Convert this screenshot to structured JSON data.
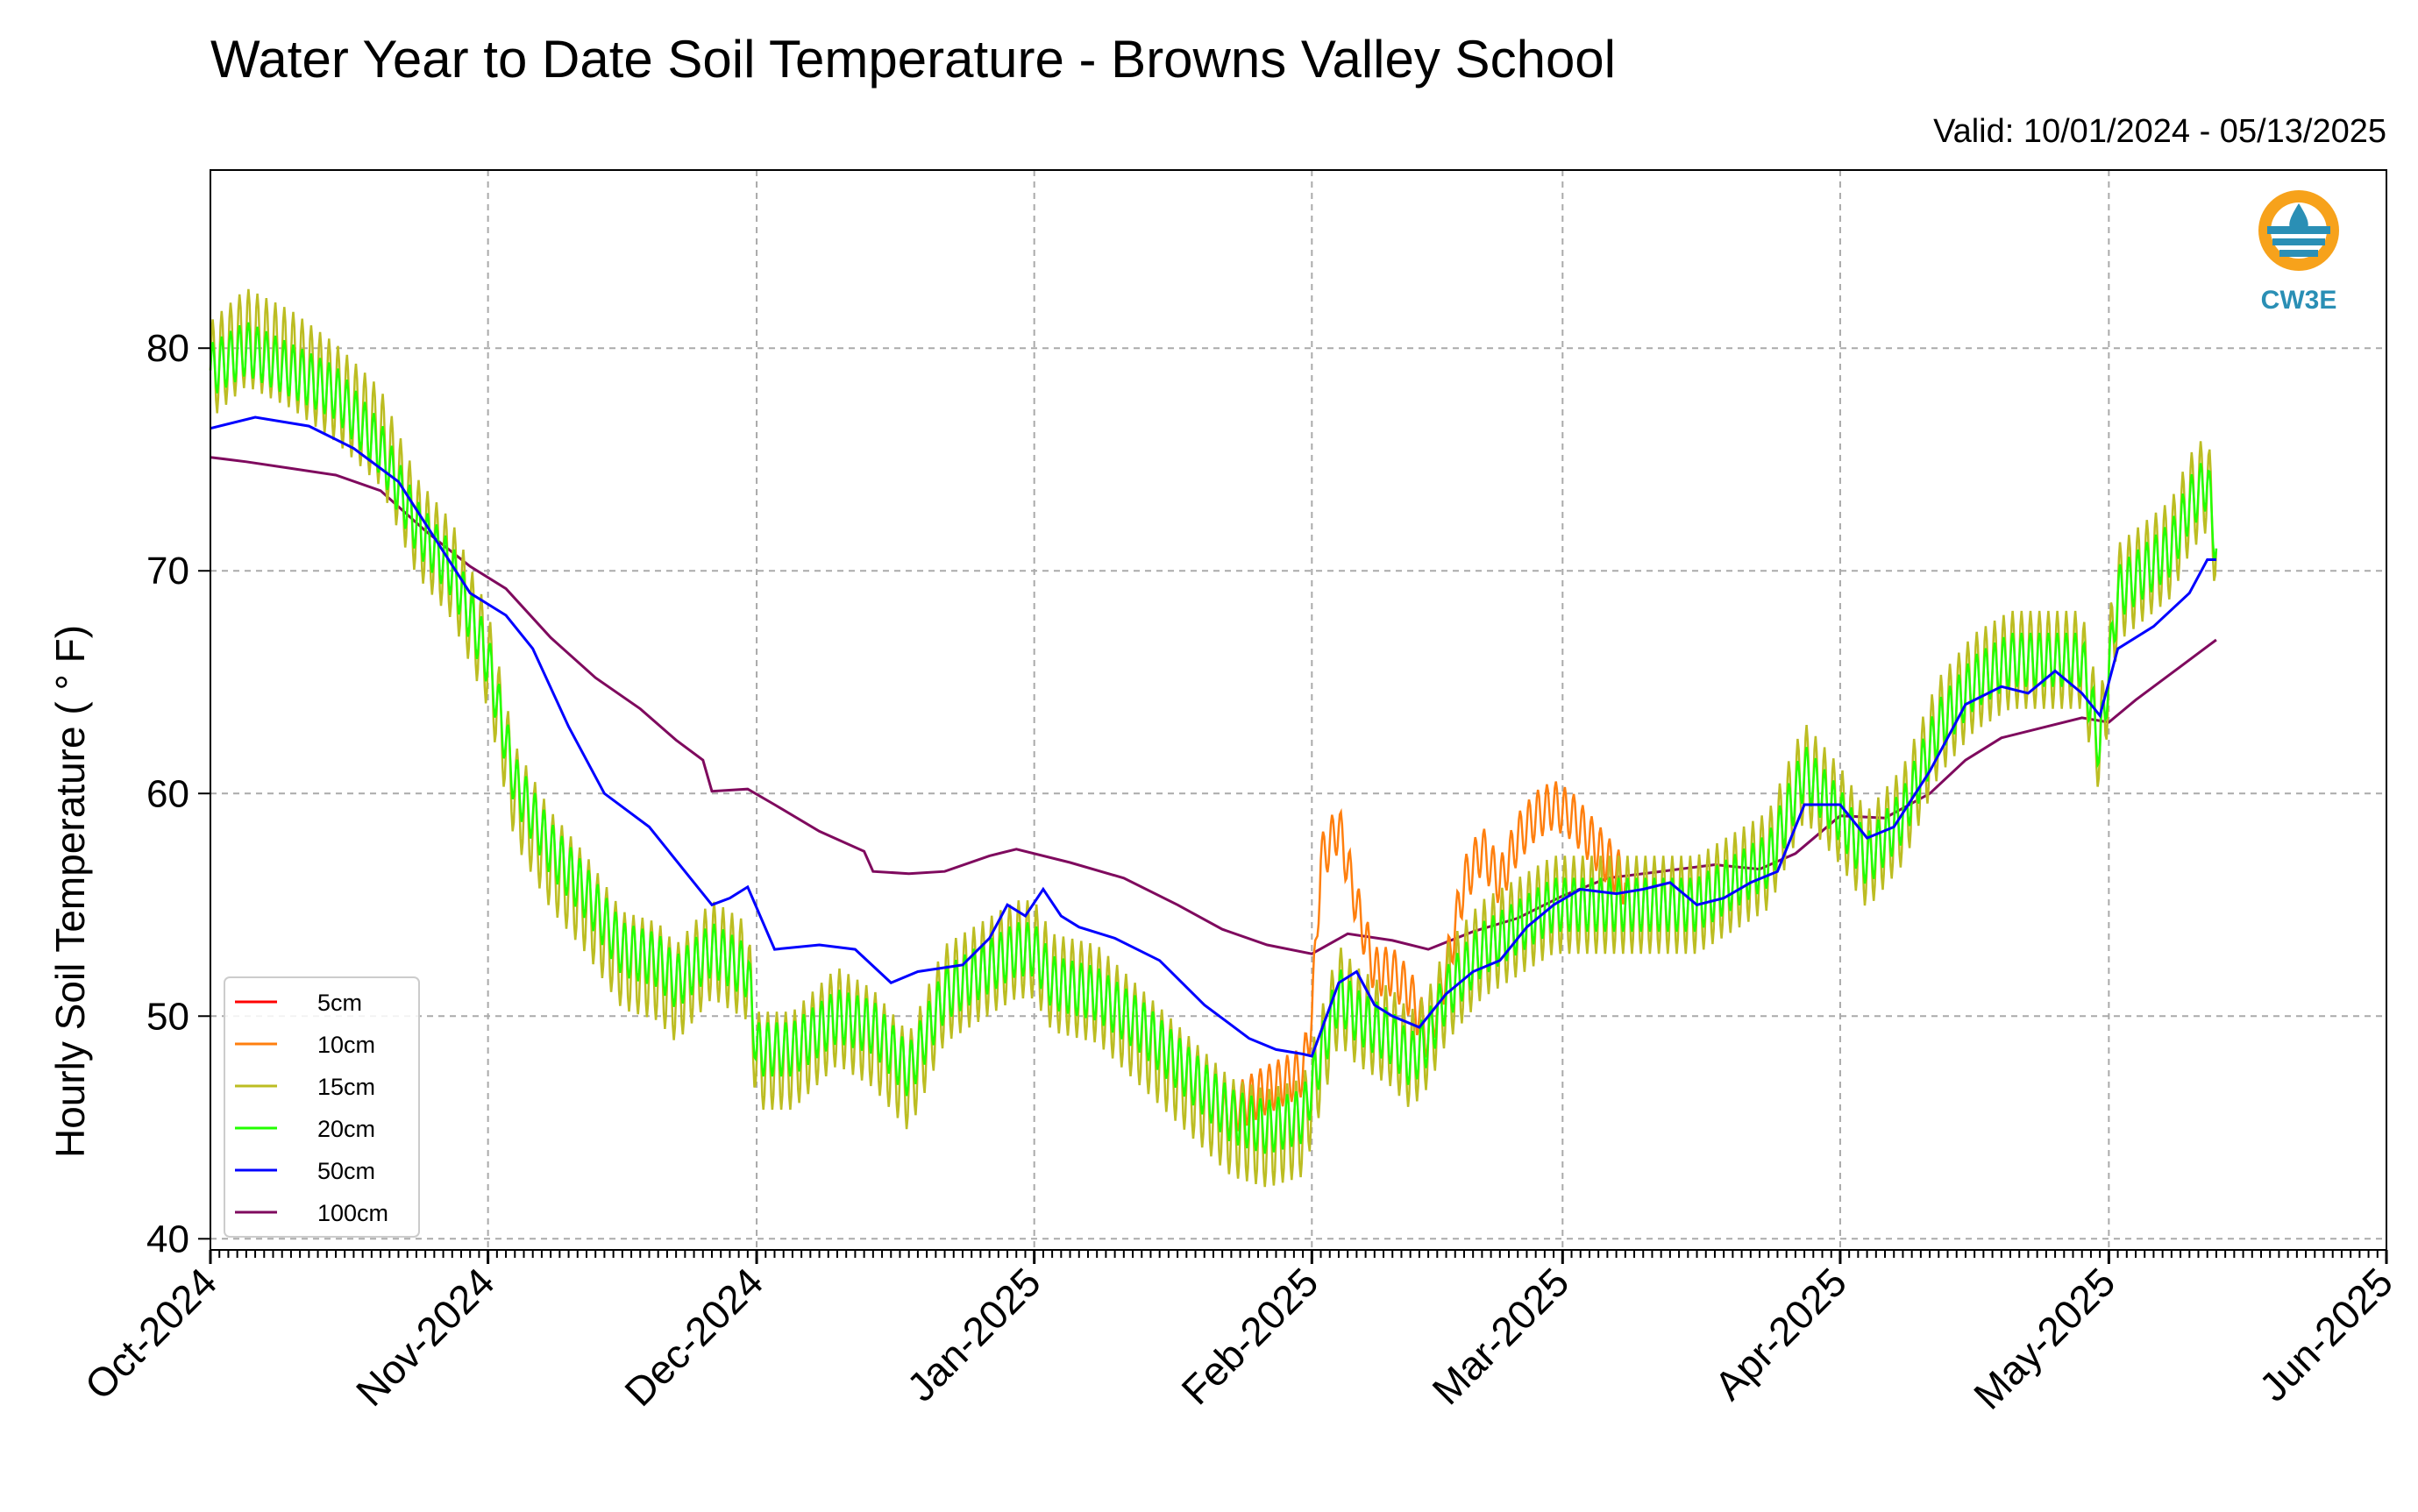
{
  "title": "Water Year to Date Soil Temperature - Browns Valley School",
  "valid": "Valid: 10/01/2024 - 05/13/2025",
  "logo_text": "CW3E",
  "chart_data": {
    "type": "line",
    "ylabel": "Hourly Soil Temperature ( ° F)",
    "ylim": [
      39.5,
      88
    ],
    "yticks": [
      40,
      50,
      60,
      70,
      80
    ],
    "xlim": [
      "2024-10-01",
      "2025-06-01"
    ],
    "xticks": [
      {
        "date": "2024-10-01",
        "label": "Oct-2024"
      },
      {
        "date": "2024-11-01",
        "label": "Nov-2024"
      },
      {
        "date": "2024-12-01",
        "label": "Dec-2024"
      },
      {
        "date": "2025-01-01",
        "label": "Jan-2025"
      },
      {
        "date": "2025-02-01",
        "label": "Feb-2025"
      },
      {
        "date": "2025-03-01",
        "label": "Mar-2025"
      },
      {
        "date": "2025-04-01",
        "label": "Apr-2025"
      },
      {
        "date": "2025-05-01",
        "label": "May-2025"
      },
      {
        "date": "2025-06-01",
        "label": "Jun-2025"
      }
    ],
    "grid": true,
    "legend_position": "lower-left",
    "series": [
      {
        "name": "5cm",
        "color": "#ff0000",
        "amp": 0,
        "points": []
      },
      {
        "name": "10cm",
        "color": "#ff7f0e",
        "amp": 0.5,
        "points": [
          [
            "2025-01-22",
            45.5
          ],
          [
            "2025-01-26",
            46.5
          ],
          [
            "2025-01-31",
            47.5
          ],
          [
            "2025-02-01",
            50
          ],
          [
            "2025-02-02",
            57
          ],
          [
            "2025-02-04",
            58.5
          ],
          [
            "2025-02-06",
            55
          ],
          [
            "2025-02-08",
            52
          ],
          [
            "2025-02-10",
            52
          ],
          [
            "2025-02-12",
            51
          ],
          [
            "2025-02-14",
            49
          ],
          [
            "2025-02-16",
            52
          ],
          [
            "2025-02-18",
            56
          ],
          [
            "2025-02-20",
            57.5
          ],
          [
            "2025-02-22",
            56
          ],
          [
            "2025-02-24",
            58
          ],
          [
            "2025-02-26",
            59
          ],
          [
            "2025-02-28",
            59.5
          ],
          [
            "2025-03-02",
            59
          ],
          [
            "2025-03-04",
            58
          ],
          [
            "2025-03-06",
            57
          ],
          [
            "2025-03-08",
            56
          ]
        ]
      },
      {
        "name": "15cm",
        "color": "#bcbd22",
        "amp": 1.0,
        "points": [
          [
            "2024-10-01",
            79
          ],
          [
            "2024-10-05",
            80.5
          ],
          [
            "2024-10-10",
            79.5
          ],
          [
            "2024-10-15",
            78
          ],
          [
            "2024-10-20",
            76
          ],
          [
            "2024-10-24",
            72
          ],
          [
            "2024-10-28",
            70
          ],
          [
            "2024-11-01",
            66
          ],
          [
            "2024-11-04",
            60
          ],
          [
            "2024-11-08",
            57
          ],
          [
            "2024-11-12",
            55
          ],
          [
            "2024-11-16",
            52.5
          ],
          [
            "2024-11-20",
            52
          ],
          [
            "2024-11-22",
            51
          ],
          [
            "2024-11-26",
            53
          ],
          [
            "2024-11-30",
            52
          ],
          [
            "2024-12-01",
            48
          ],
          [
            "2024-12-05",
            48
          ],
          [
            "2024-12-10",
            50
          ],
          [
            "2024-12-14",
            49
          ],
          [
            "2024-12-18",
            47
          ],
          [
            "2024-12-22",
            51
          ],
          [
            "2024-12-26",
            52
          ],
          [
            "2024-12-30",
            53
          ],
          [
            "2025-01-01",
            53
          ],
          [
            "2025-01-03",
            51.5
          ],
          [
            "2025-01-08",
            51
          ],
          [
            "2025-01-13",
            49
          ],
          [
            "2025-01-18",
            47
          ],
          [
            "2025-01-23",
            45
          ],
          [
            "2025-01-27",
            44.5
          ],
          [
            "2025-01-31",
            45
          ],
          [
            "2025-02-04",
            51
          ],
          [
            "2025-02-06",
            50
          ],
          [
            "2025-02-08",
            49.5
          ],
          [
            "2025-02-10",
            49
          ],
          [
            "2025-02-12",
            48
          ],
          [
            "2025-02-14",
            49
          ],
          [
            "2025-02-16",
            51
          ],
          [
            "2025-02-20",
            53
          ],
          [
            "2025-02-24",
            54
          ],
          [
            "2025-02-28",
            55
          ],
          [
            "2025-03-04",
            55
          ],
          [
            "2025-03-08",
            55
          ],
          [
            "2025-03-12",
            55
          ],
          [
            "2025-03-16",
            55
          ],
          [
            "2025-03-20",
            56
          ],
          [
            "2025-03-24",
            57
          ],
          [
            "2025-03-28",
            61
          ],
          [
            "2025-04-01",
            59
          ],
          [
            "2025-04-04",
            57
          ],
          [
            "2025-04-08",
            59
          ],
          [
            "2025-04-12",
            63
          ],
          [
            "2025-04-16",
            65
          ],
          [
            "2025-04-20",
            66
          ],
          [
            "2025-04-24",
            66
          ],
          [
            "2025-04-28",
            66
          ],
          [
            "2025-04-30",
            62
          ],
          [
            "2025-05-02",
            69
          ],
          [
            "2025-05-05",
            70
          ],
          [
            "2025-05-08",
            71
          ],
          [
            "2025-05-10",
            73
          ],
          [
            "2025-05-12",
            74
          ],
          [
            "2025-05-13",
            71
          ]
        ]
      },
      {
        "name": "20cm",
        "color": "#22ff00",
        "amp": 0.55,
        "points": [
          [
            "2024-10-01",
            79
          ],
          [
            "2024-10-05",
            80
          ],
          [
            "2024-10-10",
            79
          ],
          [
            "2024-10-15",
            78
          ],
          [
            "2024-10-20",
            75.5
          ],
          [
            "2024-10-24",
            72
          ],
          [
            "2024-10-28",
            70
          ],
          [
            "2024-11-01",
            66
          ],
          [
            "2024-11-04",
            60.5
          ],
          [
            "2024-11-08",
            57.5
          ],
          [
            "2024-11-12",
            55.5
          ],
          [
            "2024-11-16",
            53
          ],
          [
            "2024-11-20",
            52.5
          ],
          [
            "2024-11-22",
            51.5
          ],
          [
            "2024-11-26",
            53
          ],
          [
            "2024-11-30",
            52
          ],
          [
            "2024-12-01",
            48.5
          ],
          [
            "2024-12-05",
            48.5
          ],
          [
            "2024-12-10",
            50
          ],
          [
            "2024-12-14",
            49.5
          ],
          [
            "2024-12-18",
            47.5
          ],
          [
            "2024-12-22",
            51
          ],
          [
            "2024-12-26",
            52
          ],
          [
            "2024-12-30",
            53
          ],
          [
            "2025-01-01",
            53
          ],
          [
            "2025-01-03",
            51.5
          ],
          [
            "2025-01-08",
            51
          ],
          [
            "2025-01-13",
            49.5
          ],
          [
            "2025-01-18",
            47.5
          ],
          [
            "2025-01-23",
            45.5
          ],
          [
            "2025-01-27",
            45
          ],
          [
            "2025-01-31",
            45.5
          ],
          [
            "2025-02-04",
            51
          ],
          [
            "2025-02-06",
            50
          ],
          [
            "2025-02-08",
            49.5
          ],
          [
            "2025-02-10",
            49
          ],
          [
            "2025-02-12",
            48
          ],
          [
            "2025-02-14",
            49
          ],
          [
            "2025-02-16",
            51
          ],
          [
            "2025-02-20",
            53
          ],
          [
            "2025-02-24",
            54
          ],
          [
            "2025-02-28",
            55
          ],
          [
            "2025-03-04",
            55
          ],
          [
            "2025-03-08",
            55
          ],
          [
            "2025-03-12",
            55
          ],
          [
            "2025-03-16",
            55
          ],
          [
            "2025-03-20",
            56
          ],
          [
            "2025-03-24",
            57
          ],
          [
            "2025-03-28",
            61
          ],
          [
            "2025-04-01",
            59
          ],
          [
            "2025-04-04",
            57
          ],
          [
            "2025-04-08",
            59
          ],
          [
            "2025-04-12",
            63
          ],
          [
            "2025-04-16",
            65
          ],
          [
            "2025-04-20",
            66
          ],
          [
            "2025-04-24",
            66
          ],
          [
            "2025-04-28",
            66
          ],
          [
            "2025-04-30",
            62
          ],
          [
            "2025-05-02",
            69
          ],
          [
            "2025-05-05",
            70
          ],
          [
            "2025-05-08",
            71
          ],
          [
            "2025-05-10",
            73
          ],
          [
            "2025-05-12",
            74
          ],
          [
            "2025-05-13",
            71
          ]
        ]
      },
      {
        "name": "50cm",
        "color": "#0000ff",
        "amp": 0,
        "points": [
          [
            "2024-10-01",
            76.4
          ],
          [
            "2024-10-06",
            76.9
          ],
          [
            "2024-10-12",
            76.5
          ],
          [
            "2024-10-17",
            75.5
          ],
          [
            "2024-10-22",
            74
          ],
          [
            "2024-10-26",
            71.5
          ],
          [
            "2024-10-30",
            69
          ],
          [
            "2024-11-03",
            68
          ],
          [
            "2024-11-06",
            66.5
          ],
          [
            "2024-11-10",
            63
          ],
          [
            "2024-11-14",
            60
          ],
          [
            "2024-11-19",
            58.5
          ],
          [
            "2024-11-23",
            56.5
          ],
          [
            "2024-11-26",
            55
          ],
          [
            "2024-11-28",
            55.3
          ],
          [
            "2024-11-30",
            55.8
          ],
          [
            "2024-12-03",
            53
          ],
          [
            "2024-12-08",
            53.2
          ],
          [
            "2024-12-12",
            53
          ],
          [
            "2024-12-16",
            51.5
          ],
          [
            "2024-12-19",
            52
          ],
          [
            "2024-12-24",
            52.3
          ],
          [
            "2024-12-27",
            53.5
          ],
          [
            "2024-12-29",
            55
          ],
          [
            "2024-12-31",
            54.5
          ],
          [
            "2025-01-02",
            55.7
          ],
          [
            "2025-01-04",
            54.5
          ],
          [
            "2025-01-06",
            54
          ],
          [
            "2025-01-10",
            53.5
          ],
          [
            "2025-01-15",
            52.5
          ],
          [
            "2025-01-20",
            50.5
          ],
          [
            "2025-01-25",
            49
          ],
          [
            "2025-01-28",
            48.5
          ],
          [
            "2025-01-31",
            48.3
          ],
          [
            "2025-02-01",
            48.2
          ],
          [
            "2025-02-04",
            51.5
          ],
          [
            "2025-02-06",
            52
          ],
          [
            "2025-02-08",
            50.5
          ],
          [
            "2025-02-10",
            50
          ],
          [
            "2025-02-13",
            49.5
          ],
          [
            "2025-02-16",
            51
          ],
          [
            "2025-02-19",
            52
          ],
          [
            "2025-02-22",
            52.5
          ],
          [
            "2025-02-25",
            54
          ],
          [
            "2025-02-28",
            55
          ],
          [
            "2025-03-03",
            55.7
          ],
          [
            "2025-03-07",
            55.5
          ],
          [
            "2025-03-10",
            55.7
          ],
          [
            "2025-03-13",
            56
          ],
          [
            "2025-03-16",
            55
          ],
          [
            "2025-03-19",
            55.3
          ],
          [
            "2025-03-22",
            56
          ],
          [
            "2025-03-25",
            56.5
          ],
          [
            "2025-03-28",
            59.5
          ],
          [
            "2025-04-01",
            59.5
          ],
          [
            "2025-04-04",
            58
          ],
          [
            "2025-04-07",
            58.5
          ],
          [
            "2025-04-11",
            61
          ],
          [
            "2025-04-15",
            64
          ],
          [
            "2025-04-19",
            64.8
          ],
          [
            "2025-04-22",
            64.5
          ],
          [
            "2025-04-25",
            65.5
          ],
          [
            "2025-04-28",
            64.5
          ],
          [
            "2025-04-30",
            63.5
          ],
          [
            "2025-05-02",
            66.5
          ],
          [
            "2025-05-06",
            67.5
          ],
          [
            "2025-05-10",
            69
          ],
          [
            "2025-05-12",
            70.5
          ],
          [
            "2025-05-13",
            70.5
          ]
        ]
      },
      {
        "name": "100cm",
        "color": "#7f0a5e",
        "amp": 0,
        "points": [
          [
            "2024-10-01",
            75.1
          ],
          [
            "2024-10-05",
            74.9
          ],
          [
            "2024-10-10",
            74.6
          ],
          [
            "2024-10-15",
            74.3
          ],
          [
            "2024-10-20",
            73.6
          ],
          [
            "2024-10-25",
            71.8
          ],
          [
            "2024-10-30",
            70.2
          ],
          [
            "2024-11-03",
            69.2
          ],
          [
            "2024-11-08",
            67
          ],
          [
            "2024-11-13",
            65.2
          ],
          [
            "2024-11-18",
            63.8
          ],
          [
            "2024-11-22",
            62.4
          ],
          [
            "2024-11-25",
            61.5
          ],
          [
            "2024-11-26",
            60.1
          ],
          [
            "2024-11-30",
            60.2
          ],
          [
            "2024-12-03",
            59.5
          ],
          [
            "2024-12-08",
            58.3
          ],
          [
            "2024-12-13",
            57.4
          ],
          [
            "2024-12-14",
            56.5
          ],
          [
            "2024-12-18",
            56.4
          ],
          [
            "2024-12-22",
            56.5
          ],
          [
            "2024-12-27",
            57.2
          ],
          [
            "2024-12-30",
            57.5
          ],
          [
            "2025-01-05",
            56.9
          ],
          [
            "2025-01-11",
            56.2
          ],
          [
            "2025-01-17",
            55
          ],
          [
            "2025-01-22",
            53.9
          ],
          [
            "2025-01-27",
            53.2
          ],
          [
            "2025-02-01",
            52.8
          ],
          [
            "2025-02-05",
            53.7
          ],
          [
            "2025-02-10",
            53.4
          ],
          [
            "2025-02-14",
            53
          ],
          [
            "2025-02-19",
            53.8
          ],
          [
            "2025-02-24",
            54.4
          ],
          [
            "2025-03-01",
            55.4
          ],
          [
            "2025-03-06",
            56.2
          ],
          [
            "2025-03-12",
            56.5
          ],
          [
            "2025-03-18",
            56.8
          ],
          [
            "2025-03-23",
            56.6
          ],
          [
            "2025-03-27",
            57.3
          ],
          [
            "2025-04-01",
            59
          ],
          [
            "2025-04-06",
            58.9
          ],
          [
            "2025-04-11",
            60
          ],
          [
            "2025-04-15",
            61.5
          ],
          [
            "2025-04-19",
            62.5
          ],
          [
            "2025-04-24",
            63
          ],
          [
            "2025-04-28",
            63.4
          ],
          [
            "2025-05-01",
            63.2
          ],
          [
            "2025-05-04",
            64.2
          ],
          [
            "2025-05-08",
            65.4
          ],
          [
            "2025-05-12",
            66.6
          ],
          [
            "2025-05-13",
            66.9
          ]
        ]
      }
    ]
  }
}
